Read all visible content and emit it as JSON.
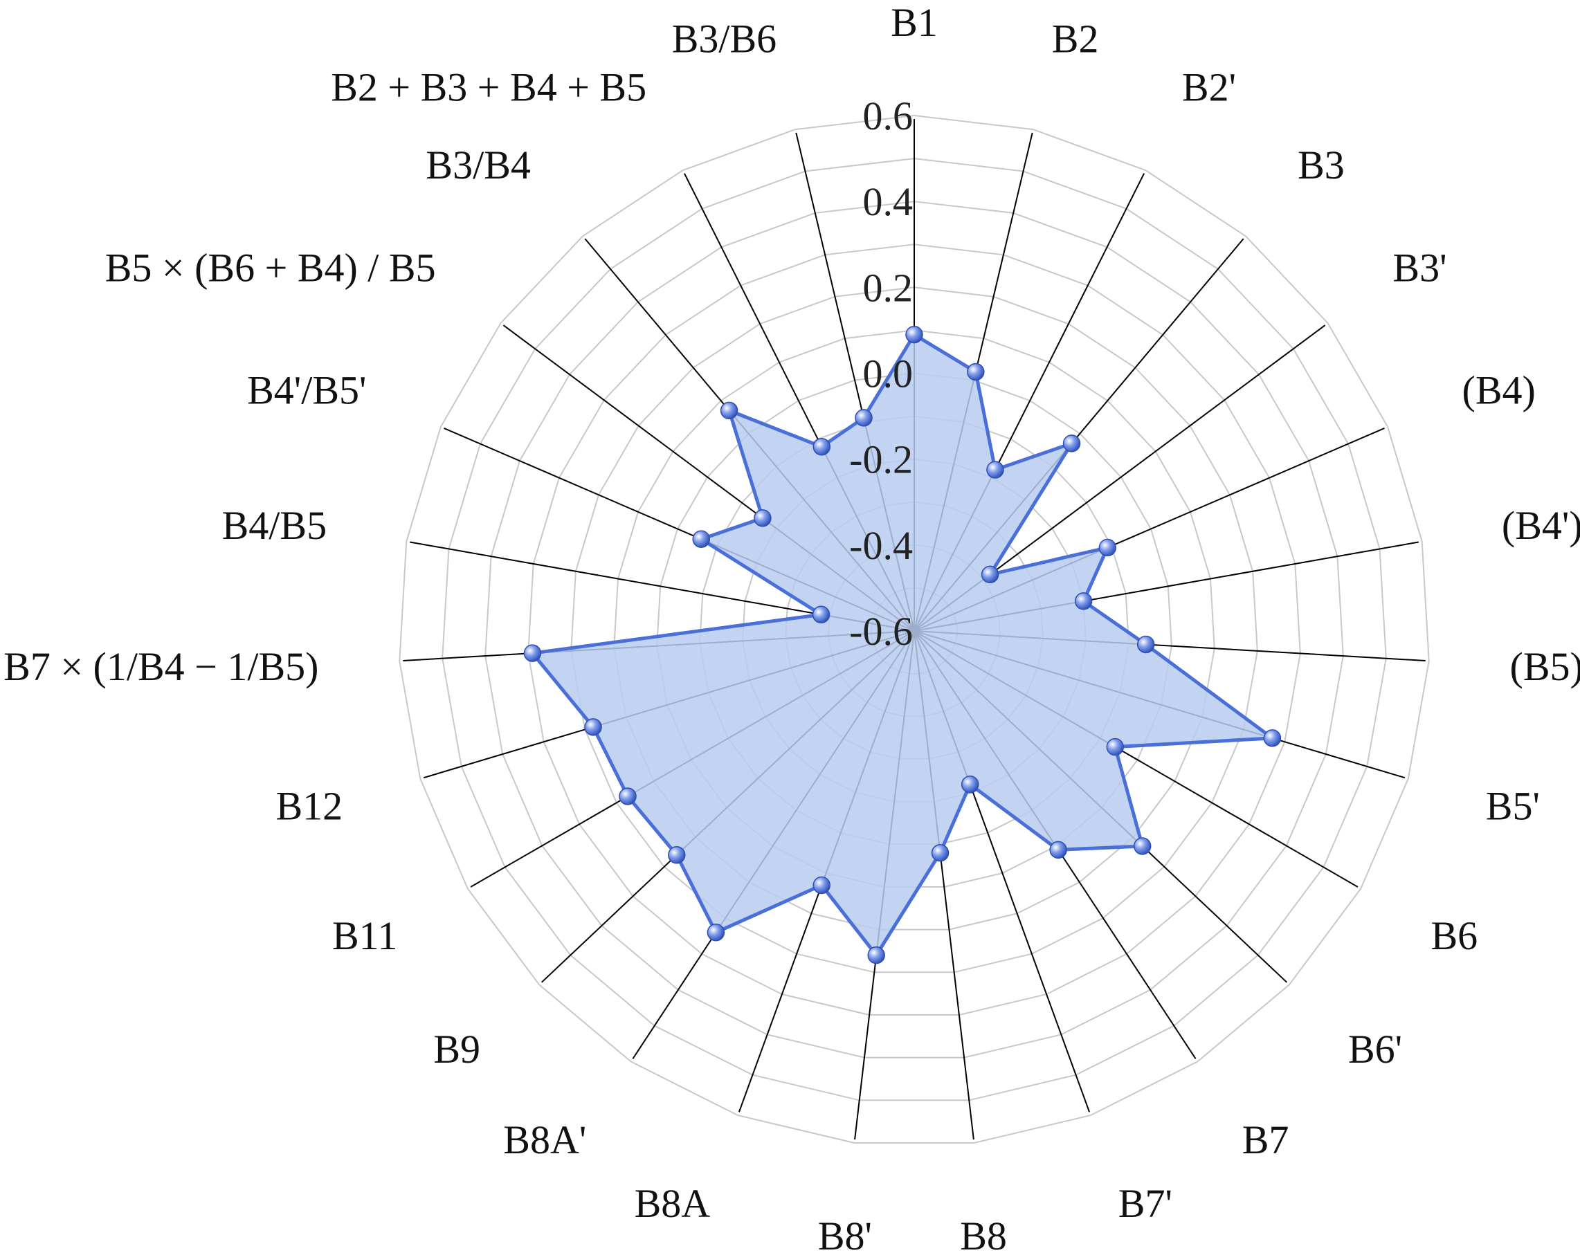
{
  "chart_data": {
    "type": "radar",
    "title": "",
    "radial_range": [
      -0.6,
      0.6
    ],
    "radial_ticks": [
      "0.6",
      "0.4",
      "0.2",
      "0.0",
      "-0.2",
      "-0.4",
      "-0.6"
    ],
    "grid": true,
    "categories": [
      "B1",
      "B2",
      "B2'",
      "B3",
      "B3'",
      "(B4)",
      "(B4')",
      "(B5)",
      "B5'",
      "B6",
      "B6'",
      "B7",
      "B7'",
      "B8",
      "B8'",
      "B8A",
      "B8A'",
      "B9",
      "B11",
      "B12",
      "B7 × (1/B4 − 1/B5)",
      "B4/B5",
      "B4'/B5'",
      "B5 × (B6 + B4) / B5",
      "B3/B4",
      "B2 + B3 + B4 + B5",
      "B3/B6"
    ],
    "series": [
      {
        "values": [
          0.09,
          0.02,
          -0.18,
          -0.03,
          -0.38,
          -0.11,
          -0.2,
          -0.06,
          0.27,
          -0.06,
          0.13,
          0.01,
          -0.22,
          -0.08,
          0.16,
          0.03,
          0.24,
          0.16,
          0.17,
          0.18,
          0.29,
          -0.38,
          -0.06,
          -0.16,
          0.07,
          -0.12,
          -0.09
        ],
        "color": "#4a6fd8",
        "fill": "#b9cdf0"
      }
    ]
  }
}
